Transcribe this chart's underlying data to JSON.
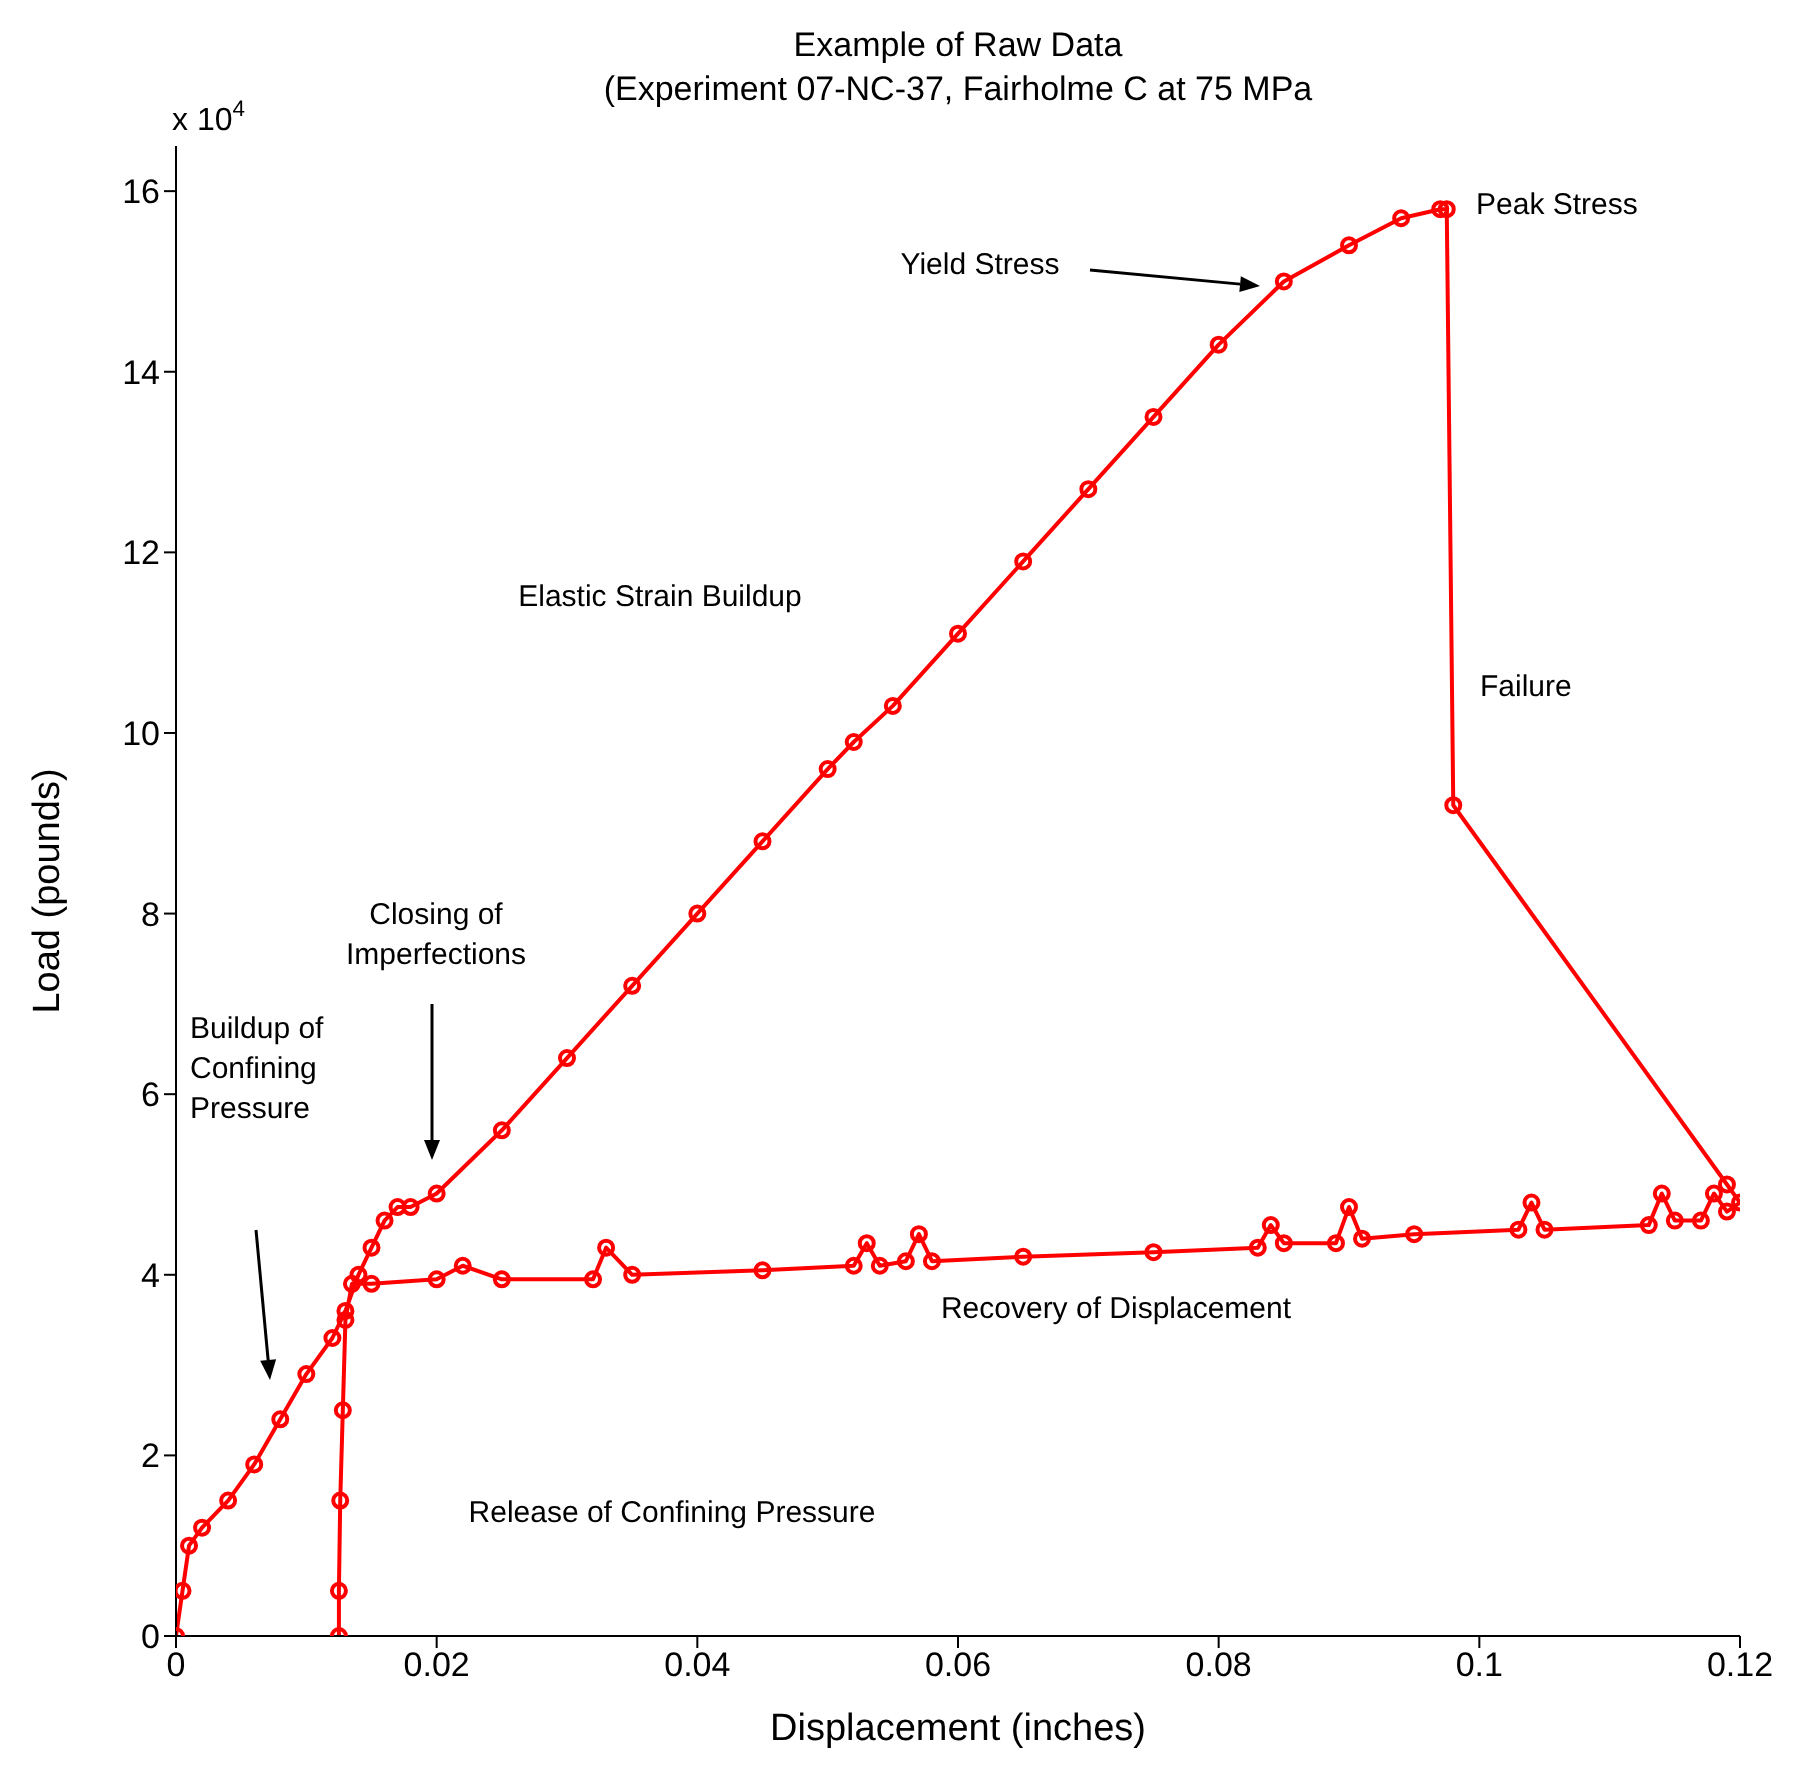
{
  "chart_data": {
    "type": "line",
    "title": "Example of Raw Data",
    "subtitle": "(Experiment 07-NC-37, Fairholme C at 75 MPa",
    "xlabel": "Displacement (inches)",
    "ylabel": "Load (pounds)",
    "xlim": [
      0,
      0.12
    ],
    "xticks": [
      0,
      0.02,
      0.04,
      0.06,
      0.08,
      0.1,
      0.12
    ],
    "ylim": [
      0,
      16.5
    ],
    "yticks": [
      0,
      2,
      4,
      6,
      8,
      10,
      12,
      14,
      16
    ],
    "marker": "circle",
    "line_style": "solid",
    "annotations": [
      "x 10$^{4}$",
      "Yield Stress",
      "Closing of Imperfections",
      "Buildup of Confining Pressure",
      "Peak Stress",
      "Failure",
      "Elastic Strain Buildup",
      "Recovery of Displacement",
      "Release of Confining Pressure"
    ],
    "series": [
      {
        "color": "#ff0000",
        "x": [
          0,
          0.0005,
          0.001,
          0.002,
          0.004,
          0.006,
          0.008,
          0.01,
          0.012,
          0.013,
          0.014,
          0.015,
          0.016,
          0.017,
          0.018,
          0.02,
          0.025,
          0.03,
          0.035,
          0.04,
          0.045,
          0.05,
          0.052,
          0.055,
          0.06,
          0.065,
          0.07,
          0.075,
          0.08,
          0.085,
          0.09,
          0.094,
          0.097,
          0.0975,
          0.098,
          0.119,
          0.12,
          0.119,
          0.118,
          0.117,
          0.115,
          0.114,
          0.113,
          0.105,
          0.104,
          0.103,
          0.095,
          0.091,
          0.09,
          0.089,
          0.085,
          0.084,
          0.083,
          0.075,
          0.065,
          0.058,
          0.057,
          0.056,
          0.054,
          0.053,
          0.052,
          0.045,
          0.035,
          0.033,
          0.032,
          0.025,
          0.022,
          0.02,
          0.015,
          0.0135,
          0.013,
          0.0128,
          0.0126,
          0.0125,
          0.0125
        ],
        "values": [
          0,
          0.5,
          1,
          1.2,
          1.5,
          1.9,
          2.4,
          2.9,
          3.3,
          3.6,
          4,
          4.3,
          4.6,
          4.75,
          4.75,
          4.9,
          5.6,
          6.4,
          7.2,
          8,
          8.8,
          9.6,
          9.9,
          10.3,
          11.1,
          11.9,
          12.7,
          13.5,
          14.3,
          15,
          15.4,
          15.7,
          15.8,
          15.8,
          9.2,
          5,
          4.8,
          4.7,
          4.9,
          4.6,
          4.6,
          4.9,
          4.55,
          4.5,
          4.8,
          4.5,
          4.45,
          4.4,
          4.75,
          4.35,
          4.35,
          4.55,
          4.3,
          4.25,
          4.2,
          4.15,
          4.45,
          4.15,
          4.1,
          4.35,
          4.1,
          4.05,
          4,
          4.3,
          3.95,
          3.95,
          4.1,
          3.95,
          3.9,
          3.9,
          3.5,
          2.5,
          1.5,
          0.5,
          0
        ]
      }
    ]
  }
}
